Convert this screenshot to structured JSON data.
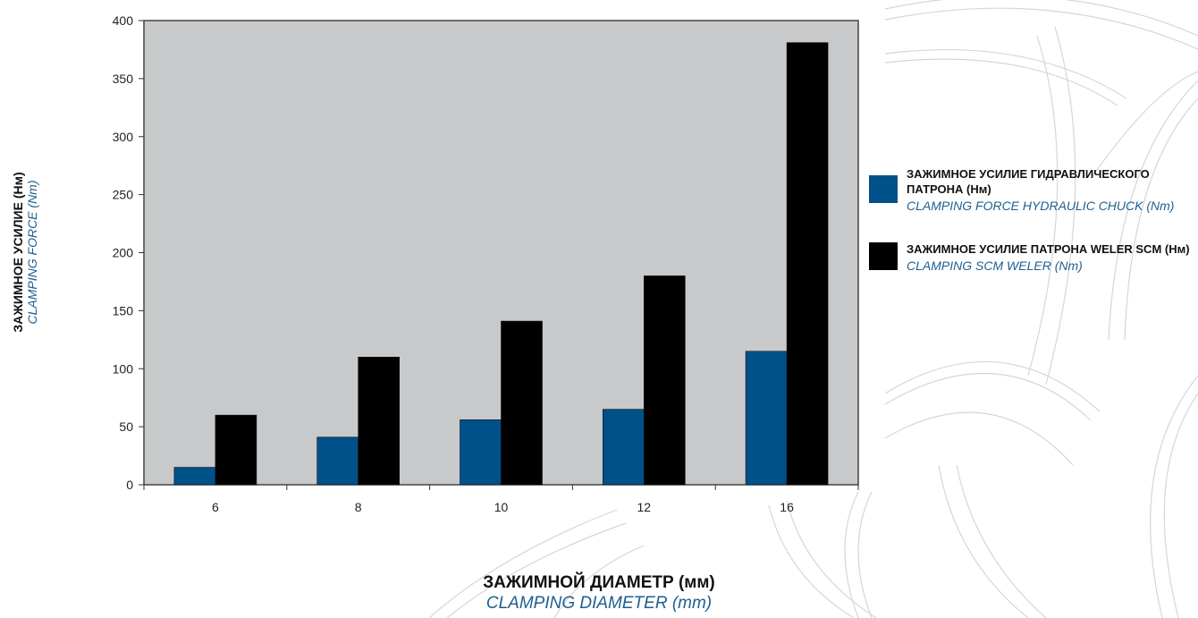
{
  "chart_data": {
    "type": "bar",
    "categories": [
      "6",
      "8",
      "10",
      "12",
      "16"
    ],
    "series": [
      {
        "name": "ЗАЖИМНОЕ УСИЛИЕ ГИДРАВЛИЧЕСКОГО ПАТРОНА (Нм)",
        "color": "#00508a",
        "values": [
          15,
          41,
          56,
          65,
          115
        ]
      },
      {
        "name": "ЗАЖИМНОЕ УСИЛИЕ ПАТРОНА WELER SCM (Нм)",
        "color": "#000000",
        "values": [
          60,
          110,
          141,
          180,
          381
        ]
      }
    ],
    "y_ticks": [
      "0",
      "50",
      "100",
      "150",
      "200",
      "250",
      "300",
      "350",
      "400"
    ],
    "ylim": [
      0,
      400
    ],
    "ylabel": "ЗАЖИМНОЕ УСИЛИЕ (Нм)",
    "ylabel_en": "CLAMPING FORCE (Nm)",
    "xlabel": "ЗАЖИМНОЙ ДИАМЕТР (мм)",
    "xlabel_en": "CLAMPING DIAMETER (mm)",
    "plot_background": "#c8c9cb",
    "grid": false,
    "legend_position": "right"
  },
  "legend": [
    {
      "label_ru": "ЗАЖИМНОЕ УСИЛИЕ ГИДРАВЛИЧЕСКОГО ПАТРОНА (Нм)",
      "label_en": "CLAMPING FORCE HYDRAULIC CHUCK (Nm)"
    },
    {
      "label_ru": "ЗАЖИМНОЕ УСИЛИЕ ПАТРОНА WELER SCM (Нм)",
      "label_en": "CLAMPING SCM WELER (Nm)"
    }
  ]
}
